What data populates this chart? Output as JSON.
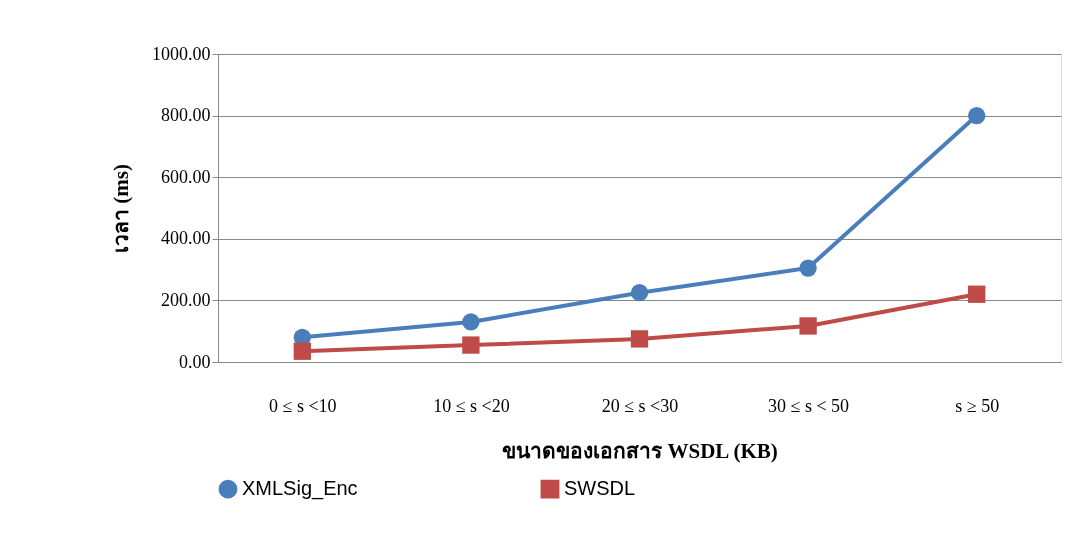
{
  "chart_data": {
    "type": "line",
    "xlabel": "ขนาดของเอกสาร WSDL (KB)",
    "ylabel": "เวลา  (ms)",
    "categories": [
      "0 ≤ s <10",
      "10 ≤ s <20",
      "20 ≤ s <30",
      "30 ≤ s < 50",
      "s ≥ 50"
    ],
    "series": [
      {
        "name": "XMLSig_Enc",
        "color": "#4a7ebb",
        "marker": "circle",
        "values": [
          80,
          130,
          225,
          305,
          800
        ]
      },
      {
        "name": "SWSDL",
        "color": "#be4b48",
        "marker": "square",
        "values": [
          35,
          55,
          75,
          117,
          220
        ]
      }
    ],
    "ylim": [
      0,
      1000
    ],
    "yticks": [
      {
        "value": 0,
        "label": "0.00"
      },
      {
        "value": 200,
        "label": "200.00"
      },
      {
        "value": 400,
        "label": "400.00"
      },
      {
        "value": 600,
        "label": "600.00"
      },
      {
        "value": 800,
        "label": "800.00"
      },
      {
        "value": 1000,
        "label": "1000.00"
      }
    ],
    "grid": "y",
    "legend": "bottom",
    "line_style": "solid"
  }
}
